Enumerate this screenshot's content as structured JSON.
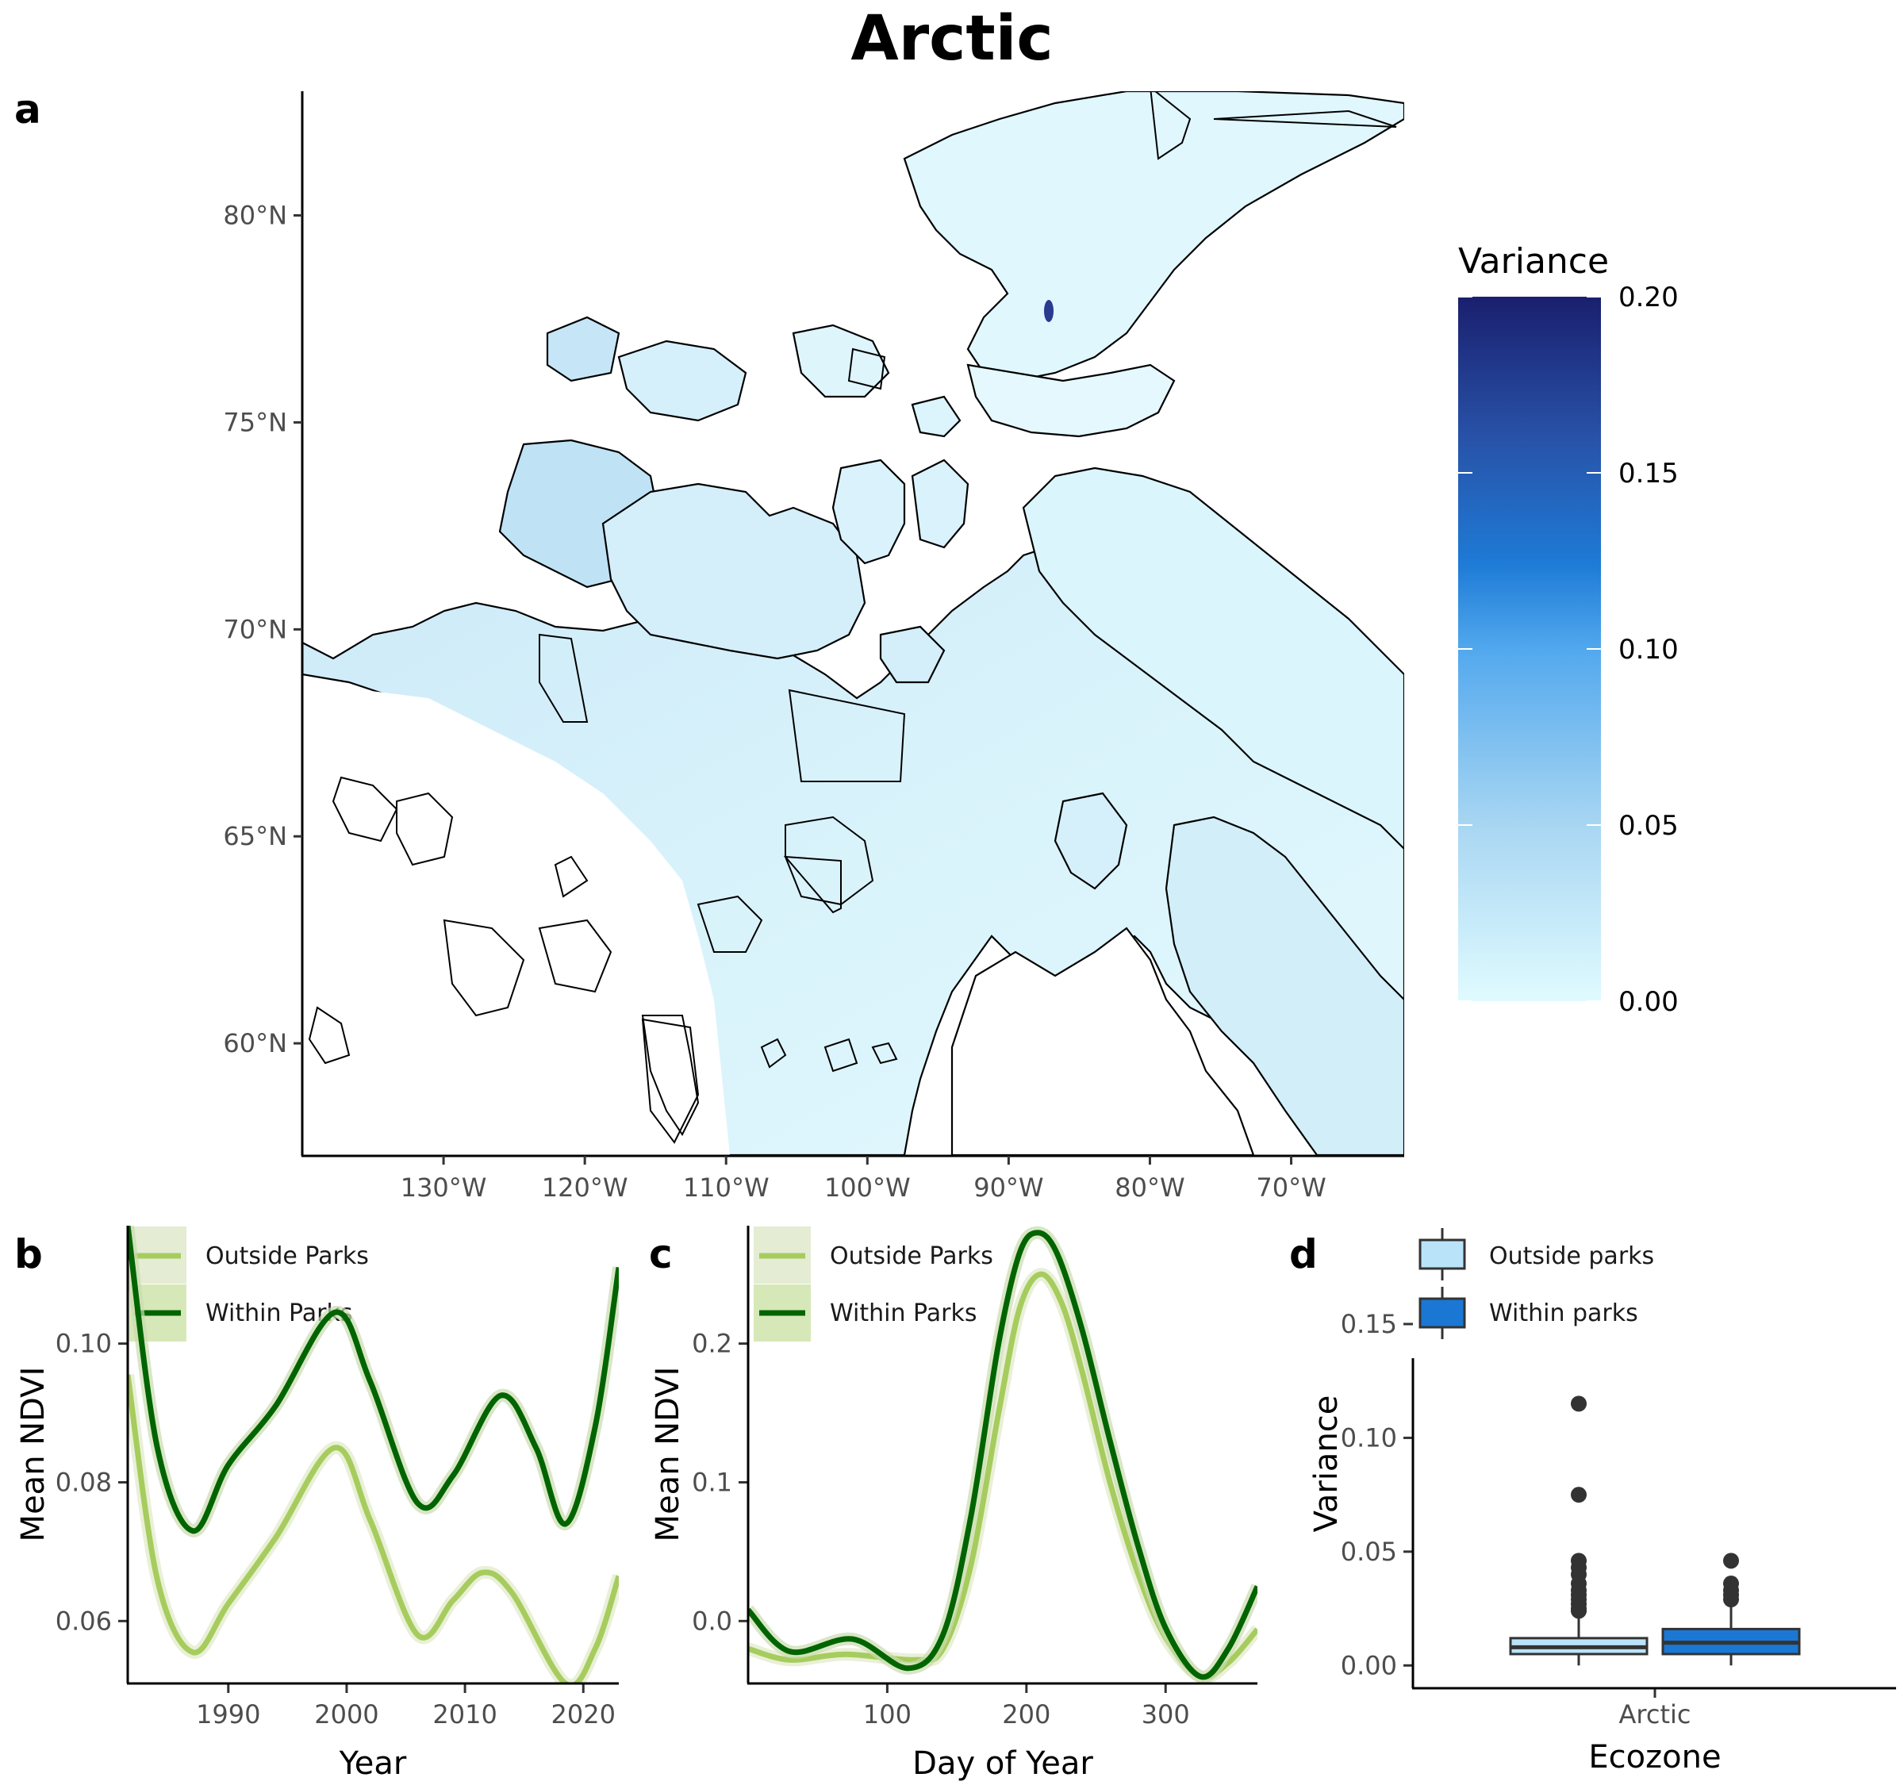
{
  "figure": {
    "title": "Arctic",
    "panel_labels": [
      "a",
      "b",
      "c",
      "d"
    ]
  },
  "colors": {
    "outside_parks_line": "#a6cc5e",
    "within_parks_line": "#006400",
    "outside_parks_box": "#b9e3f8",
    "within_parks_box": "#1a78d4",
    "variance_low": "#e0fbff",
    "variance_mid": "#1e7bd6",
    "variance_high": "#1a1f6e"
  },
  "chart_data": [
    {
      "panel": "a",
      "type": "heatmap",
      "legend_title": "Variance",
      "colorbar_ticks": [
        "0.00",
        "0.05",
        "0.10",
        "0.15",
        "0.20"
      ],
      "colorbar_range": [
        0,
        0.2
      ],
      "x_ticks": [
        "130°W",
        "120°W",
        "110°W",
        "100°W",
        "90°W",
        "80°W",
        "70°W"
      ],
      "x_tick_values": [
        -130,
        -120,
        -110,
        -100,
        -90,
        -80,
        -70
      ],
      "y_ticks": [
        "60°N",
        "65°N",
        "70°N",
        "75°N",
        "80°N"
      ],
      "y_tick_values": [
        60,
        65,
        70,
        75,
        80
      ],
      "xlim": [
        -140,
        -62
      ],
      "ylim": [
        57.3,
        83
      ]
    },
    {
      "panel": "b",
      "type": "line",
      "xlabel": "Year",
      "ylabel": "Mean NDVI",
      "xlim": [
        1981.5,
        2023
      ],
      "ylim": [
        0.051,
        0.117
      ],
      "x_ticks": [
        1990,
        2000,
        2010,
        2020
      ],
      "y_ticks": [
        0.06,
        0.08,
        0.1
      ],
      "y_tick_labels": [
        "0.06",
        "0.08",
        "0.10"
      ],
      "series": [
        {
          "name": "Outside Parks",
          "x": [
            1981.5,
            1984,
            1987,
            1990,
            1994,
            1999,
            2002,
            2006,
            2009,
            2011.5,
            2014,
            2018.5,
            2021,
            2023
          ],
          "y": [
            0.0955,
            0.066,
            0.0555,
            0.0625,
            0.072,
            0.085,
            0.0745,
            0.058,
            0.063,
            0.067,
            0.064,
            0.051,
            0.056,
            0.0665
          ]
        },
        {
          "name": "Within Parks",
          "x": [
            1981.5,
            1984,
            1987,
            1990,
            1994,
            1999,
            2002,
            2006,
            2009,
            2013,
            2016,
            2018.5,
            2021,
            2023
          ],
          "y": [
            0.117,
            0.085,
            0.073,
            0.0825,
            0.091,
            0.1045,
            0.0945,
            0.077,
            0.081,
            0.0925,
            0.085,
            0.074,
            0.088,
            0.111
          ]
        }
      ]
    },
    {
      "panel": "c",
      "type": "line",
      "xlabel": "Day of Year",
      "ylabel": "Mean NDVI",
      "xlim": [
        0,
        366
      ],
      "ylim": [
        -0.045,
        0.285
      ],
      "x_ticks": [
        100,
        200,
        300
      ],
      "y_ticks": [
        0,
        0.1,
        0.2
      ],
      "y_tick_labels": [
        "0.0",
        "0.1",
        "0.2"
      ],
      "series": [
        {
          "name": "Outside Parks",
          "x": [
            0,
            30,
            70,
            120,
            140,
            160,
            180,
            195,
            210,
            225,
            240,
            260,
            280,
            300,
            325,
            345,
            366
          ],
          "y": [
            -0.02,
            -0.028,
            -0.024,
            -0.028,
            -0.02,
            0.04,
            0.15,
            0.225,
            0.25,
            0.23,
            0.18,
            0.1,
            0.035,
            -0.012,
            -0.04,
            -0.03,
            -0.006
          ]
        },
        {
          "name": "Within Parks",
          "x": [
            0,
            30,
            75,
            115,
            140,
            160,
            180,
            195,
            208,
            222,
            240,
            260,
            280,
            300,
            325,
            345,
            366
          ],
          "y": [
            0.008,
            -0.022,
            -0.013,
            -0.034,
            -0.01,
            0.075,
            0.2,
            0.265,
            0.28,
            0.265,
            0.21,
            0.13,
            0.055,
            -0.005,
            -0.04,
            -0.02,
            0.025
          ]
        }
      ]
    },
    {
      "panel": "d",
      "type": "box",
      "xlabel": "Ecozone",
      "ylabel": "Variance",
      "category": "Arctic",
      "ylim": [
        -0.01,
        0.135
      ],
      "y_ticks": [
        0,
        0.05,
        0.1,
        0.15
      ],
      "y_tick_labels": [
        "0.00",
        "0.05",
        "0.10",
        "0.15"
      ],
      "series": [
        {
          "name": "Outside parks",
          "q1": 0.005,
          "median": 0.008,
          "q3": 0.012,
          "whisker_low": 0.0,
          "whisker_high": 0.022,
          "outliers": [
            0.115,
            0.075,
            0.046,
            0.043,
            0.04,
            0.036,
            0.033,
            0.031,
            0.029,
            0.027,
            0.025,
            0.024
          ]
        },
        {
          "name": "Within parks",
          "q1": 0.005,
          "median": 0.01,
          "q3": 0.016,
          "whisker_low": 0.0,
          "whisker_high": 0.026,
          "outliers": [
            0.046,
            0.036,
            0.033,
            0.031,
            0.029
          ]
        }
      ]
    }
  ]
}
